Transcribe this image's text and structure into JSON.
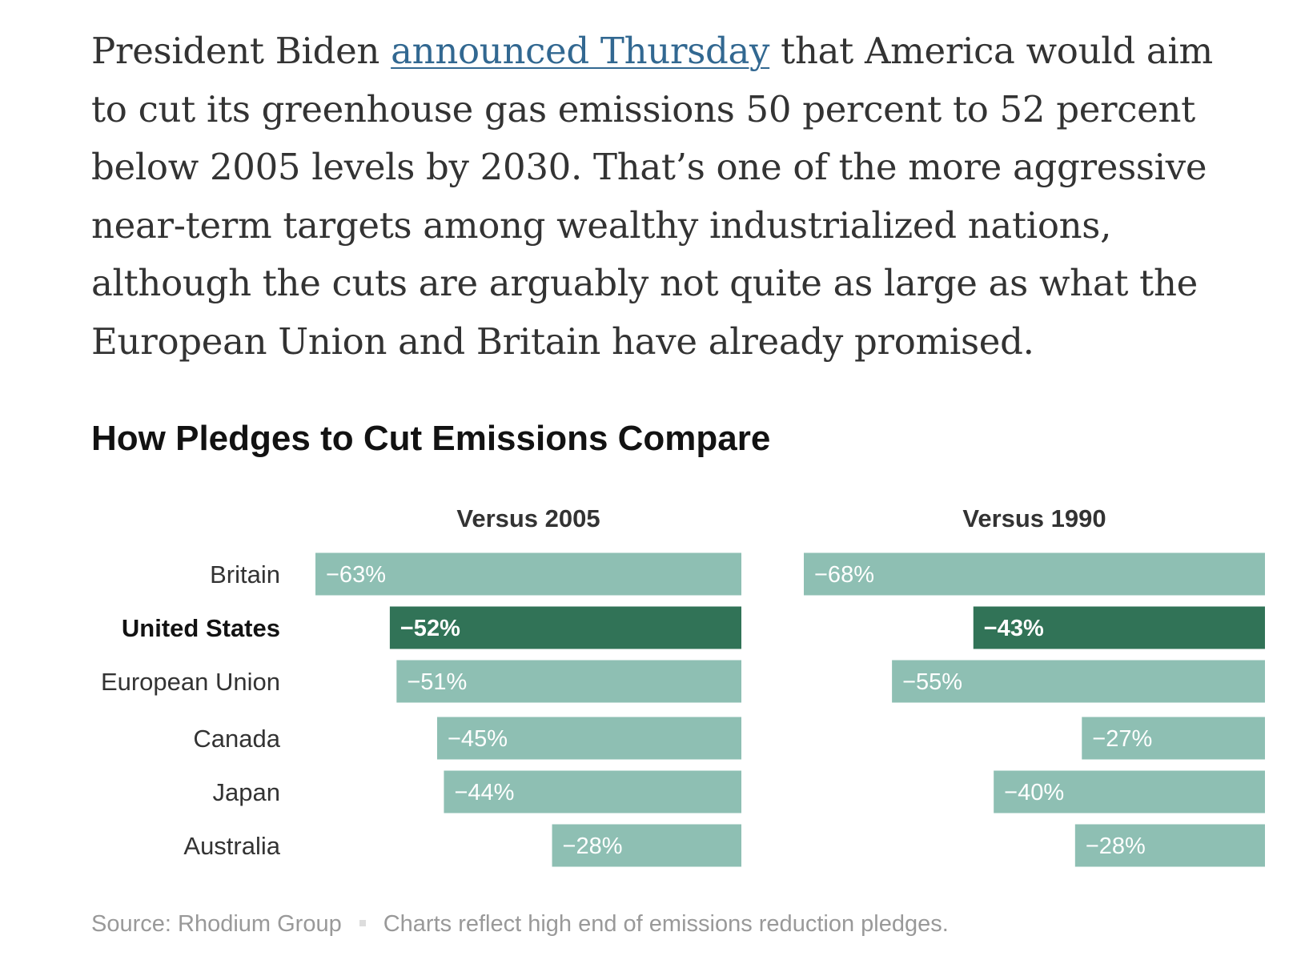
{
  "article": {
    "text_before_link": "President Biden ",
    "link_text": "announced Thursday",
    "text_after_link": " that America would aim to cut its greenhouse gas emissions 50 percent to 52 percent below 2005 levels by 2030. That’s one of the more aggressive near-term targets among wealthy industrialized nations, although the cuts are arguably not quite as large as what the European Union and Britain have already promised."
  },
  "chart": {
    "title": "How Pledges to Cut Emissions Compare"
  },
  "colors": {
    "bar": "#8ebfb3",
    "highlight_bar": "#317357",
    "link": "#326891"
  },
  "chart_data": {
    "type": "bar",
    "orientation": "horizontal",
    "title": "How Pledges to Cut Emissions Compare",
    "categories": [
      "Britain",
      "United States",
      "European Union",
      "Canada",
      "Japan",
      "Australia"
    ],
    "highlight": "United States",
    "panels": [
      {
        "name": "Versus 2005",
        "values": [
          -63,
          -52,
          -51,
          -45,
          -44,
          -28
        ],
        "labels": [
          "−63%",
          "−52%",
          "−51%",
          "−45%",
          "−44%",
          "−28%"
        ]
      },
      {
        "name": "Versus 1990",
        "values": [
          -68,
          -43,
          -55,
          -27,
          -40,
          -28
        ],
        "labels": [
          "−68%",
          "−43%",
          "−55%",
          "−27%",
          "−40%",
          "−28%"
        ]
      }
    ]
  },
  "footer": {
    "source": "Source: Rhodium Group",
    "note": "Charts reflect high end of emissions reduction pledges."
  }
}
